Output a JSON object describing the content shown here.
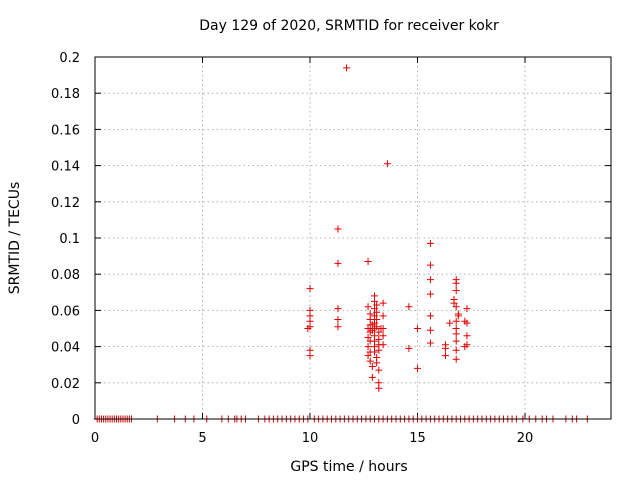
{
  "chart_data": {
    "type": "scatter",
    "title": "Day 129 of 2020, SRMTID for receiver kokr",
    "xlabel": "GPS time / hours",
    "ylabel": "SRMTID / TECUs",
    "xlim": [
      0,
      24
    ],
    "ylim": [
      0,
      0.2
    ],
    "x_ticks": [
      0,
      5,
      10,
      15,
      20
    ],
    "y_ticks": [
      0,
      0.02,
      0.04,
      0.06,
      0.08,
      0.1,
      0.12,
      0.14,
      0.16,
      0.18,
      0.2
    ],
    "x_tick_labels": [
      "0",
      "5",
      "10",
      "15",
      "20"
    ],
    "y_tick_labels": [
      "0",
      "0.02",
      "0.04",
      "0.06",
      "0.08",
      "0.1",
      "0.12",
      "0.14",
      "0.16",
      "0.18",
      "0.2"
    ],
    "grid": true,
    "marker": "+",
    "color": "#e00000",
    "series": [
      {
        "points": [
          [
            11.7,
            0.194
          ],
          [
            13.6,
            0.141
          ],
          [
            11.3,
            0.105
          ],
          [
            11.3,
            0.086
          ],
          [
            12.7,
            0.087
          ],
          [
            15.6,
            0.097
          ],
          [
            15.6,
            0.085
          ],
          [
            15.6,
            0.077
          ],
          [
            15.6,
            0.069
          ],
          [
            15.6,
            0.057
          ],
          [
            15.6,
            0.049
          ],
          [
            15.6,
            0.042
          ],
          [
            10.0,
            0.072
          ],
          [
            10.0,
            0.06
          ],
          [
            10.0,
            0.057
          ],
          [
            10.0,
            0.054
          ],
          [
            10.0,
            0.051
          ],
          [
            9.9,
            0.05
          ],
          [
            10.0,
            0.038
          ],
          [
            10.0,
            0.035
          ],
          [
            11.3,
            0.061
          ],
          [
            11.3,
            0.055
          ],
          [
            11.3,
            0.051
          ],
          [
            12.7,
            0.062
          ],
          [
            12.8,
            0.058
          ],
          [
            12.8,
            0.055
          ],
          [
            12.8,
            0.052
          ],
          [
            12.7,
            0.05
          ],
          [
            12.8,
            0.048
          ],
          [
            12.7,
            0.045
          ],
          [
            12.8,
            0.043
          ],
          [
            12.7,
            0.04
          ],
          [
            12.8,
            0.037
          ],
          [
            12.7,
            0.035
          ],
          [
            12.8,
            0.032
          ],
          [
            12.9,
            0.029
          ],
          [
            12.9,
            0.023
          ],
          [
            13.0,
            0.068
          ],
          [
            13.0,
            0.065
          ],
          [
            13.0,
            0.061
          ],
          [
            13.0,
            0.057
          ],
          [
            13.0,
            0.053
          ],
          [
            13.0,
            0.05
          ],
          [
            13.0,
            0.046
          ],
          [
            13.0,
            0.043
          ],
          [
            13.0,
            0.04
          ],
          [
            13.0,
            0.037
          ],
          [
            13.1,
            0.034
          ],
          [
            13.1,
            0.031
          ],
          [
            13.2,
            0.027
          ],
          [
            13.2,
            0.02
          ],
          [
            13.2,
            0.017
          ],
          [
            13.1,
            0.063
          ],
          [
            13.1,
            0.059
          ],
          [
            13.1,
            0.055
          ],
          [
            13.1,
            0.051
          ],
          [
            13.2,
            0.048
          ],
          [
            13.2,
            0.044
          ],
          [
            13.2,
            0.041
          ],
          [
            13.2,
            0.038
          ],
          [
            13.3,
            0.05
          ],
          [
            13.4,
            0.064
          ],
          [
            13.4,
            0.057
          ],
          [
            13.4,
            0.05
          ],
          [
            13.4,
            0.046
          ],
          [
            13.4,
            0.041
          ],
          [
            12.9,
            0.052
          ],
          [
            12.9,
            0.049
          ],
          [
            14.6,
            0.062
          ],
          [
            14.6,
            0.039
          ],
          [
            15.0,
            0.05
          ],
          [
            15.0,
            0.028
          ],
          [
            16.3,
            0.041
          ],
          [
            16.3,
            0.039
          ],
          [
            16.3,
            0.035
          ],
          [
            16.5,
            0.053
          ],
          [
            16.8,
            0.077
          ],
          [
            16.8,
            0.075
          ],
          [
            16.8,
            0.071
          ],
          [
            16.7,
            0.066
          ],
          [
            16.7,
            0.064
          ],
          [
            16.8,
            0.062
          ],
          [
            16.9,
            0.058
          ],
          [
            16.9,
            0.057
          ],
          [
            16.8,
            0.054
          ],
          [
            16.8,
            0.05
          ],
          [
            16.8,
            0.047
          ],
          [
            16.8,
            0.043
          ],
          [
            16.8,
            0.038
          ],
          [
            16.8,
            0.033
          ],
          [
            17.3,
            0.061
          ],
          [
            17.3,
            0.053
          ],
          [
            17.3,
            0.046
          ],
          [
            17.3,
            0.041
          ],
          [
            17.2,
            0.054
          ],
          [
            17.2,
            0.04
          ],
          [
            0.1,
            0
          ],
          [
            0.2,
            0
          ],
          [
            0.3,
            0
          ],
          [
            0.4,
            0
          ],
          [
            0.5,
            0
          ],
          [
            0.6,
            0
          ],
          [
            0.7,
            0
          ],
          [
            0.8,
            0
          ],
          [
            0.9,
            0
          ],
          [
            1.0,
            0
          ],
          [
            1.1,
            0
          ],
          [
            1.2,
            0
          ],
          [
            1.3,
            0
          ],
          [
            1.4,
            0
          ],
          [
            1.5,
            0
          ],
          [
            1.6,
            0
          ],
          [
            1.7,
            0
          ],
          [
            2.9,
            0
          ],
          [
            3.7,
            0
          ],
          [
            4.2,
            0
          ],
          [
            4.6,
            0
          ],
          [
            5.2,
            0
          ],
          [
            5.9,
            0
          ],
          [
            6.2,
            0
          ],
          [
            6.5,
            0
          ],
          [
            6.6,
            0
          ],
          [
            6.8,
            0
          ],
          [
            7.0,
            0
          ],
          [
            7.6,
            0
          ],
          [
            7.9,
            0
          ],
          [
            8.1,
            0
          ],
          [
            8.3,
            0
          ],
          [
            8.5,
            0
          ],
          [
            8.7,
            0
          ],
          [
            8.9,
            0
          ],
          [
            9.1,
            0
          ],
          [
            9.3,
            0
          ],
          [
            9.5,
            0
          ],
          [
            9.7,
            0
          ],
          [
            9.9,
            0
          ],
          [
            10.2,
            0
          ],
          [
            10.4,
            0
          ],
          [
            10.6,
            0
          ],
          [
            10.8,
            0
          ],
          [
            11.0,
            0
          ],
          [
            11.2,
            0
          ],
          [
            11.4,
            0
          ],
          [
            11.6,
            0
          ],
          [
            11.8,
            0
          ],
          [
            12.0,
            0
          ],
          [
            12.2,
            0
          ],
          [
            12.4,
            0
          ],
          [
            12.6,
            0
          ],
          [
            12.8,
            0
          ],
          [
            13.0,
            0
          ],
          [
            13.2,
            0
          ],
          [
            13.4,
            0
          ],
          [
            13.6,
            0
          ],
          [
            13.8,
            0
          ],
          [
            14.0,
            0
          ],
          [
            14.2,
            0
          ],
          [
            14.4,
            0
          ],
          [
            14.6,
            0
          ],
          [
            14.8,
            0
          ],
          [
            15.0,
            0
          ],
          [
            15.2,
            0
          ],
          [
            15.4,
            0
          ],
          [
            15.6,
            0
          ],
          [
            15.8,
            0
          ],
          [
            16.0,
            0
          ],
          [
            16.2,
            0
          ],
          [
            16.4,
            0
          ],
          [
            16.6,
            0
          ],
          [
            16.8,
            0
          ],
          [
            17.0,
            0
          ],
          [
            17.2,
            0
          ],
          [
            17.4,
            0
          ],
          [
            17.6,
            0
          ],
          [
            17.8,
            0
          ],
          [
            18.0,
            0
          ],
          [
            18.2,
            0
          ],
          [
            18.4,
            0
          ],
          [
            18.6,
            0
          ],
          [
            18.8,
            0
          ],
          [
            19.0,
            0
          ],
          [
            19.2,
            0
          ],
          [
            19.4,
            0
          ],
          [
            19.6,
            0
          ],
          [
            19.9,
            0
          ],
          [
            20.2,
            0
          ],
          [
            20.5,
            0
          ],
          [
            20.8,
            0
          ],
          [
            21.0,
            0
          ],
          [
            21.3,
            0
          ],
          [
            21.9,
            0
          ],
          [
            22.2,
            0
          ],
          [
            22.4,
            0
          ],
          [
            22.9,
            0
          ]
        ]
      }
    ]
  }
}
